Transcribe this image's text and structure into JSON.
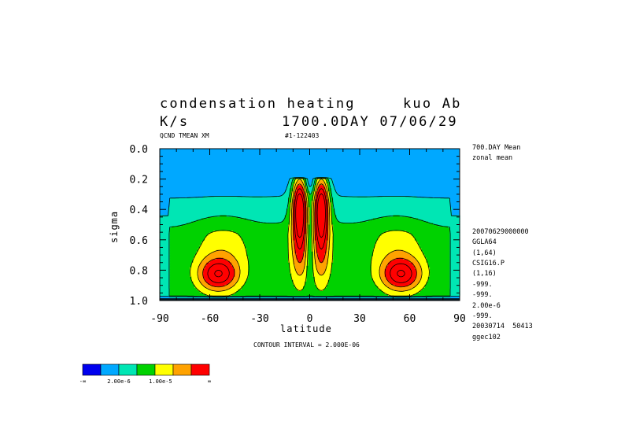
{
  "chart_data": {
    "type": "heatmap",
    "title_line1_left": "condensation heating",
    "title_line1_right": "kuo Ab",
    "title_line2_left": "K/s",
    "title_line2_right": "1700.0DAY 07/06/29",
    "var_label": "QCND TMEAN XM",
    "run_label": "#1-122403",
    "xlabel": "latitude",
    "ylabel": "sigma",
    "xlim": [
      -90,
      90
    ],
    "ylim": [
      1.0,
      0.0
    ],
    "xticks": [
      "-90",
      "-60",
      "-30",
      "0",
      "30",
      "60",
      "90"
    ],
    "yticks": [
      "0.0",
      "0.2",
      "0.4",
      "0.6",
      "0.8",
      "1.0"
    ],
    "contour_interval_text": "CONTOUR INTERVAL = 2.000E-06",
    "contour_interval": 2e-06,
    "levels": [
      0,
      2e-06,
      4e-06,
      6e-06,
      8e-06,
      1e-05,
      1.2e-05
    ],
    "colors": [
      "#0000ee",
      "#00a8ff",
      "#00e6b4",
      "#00d200",
      "#ffff00",
      "#ffa200",
      "#ff0000"
    ],
    "colorbar_labels": [
      "-∞",
      "2.00e-6",
      "1.00e-5",
      "∞"
    ],
    "annotations": [
      "700.DAY Mean",
      "zonal mean",
      "20070629000000",
      "GGLA64",
      "(1,64)",
      "CSIG16.P",
      "(1,16)",
      "-999.",
      "-999.",
      "2.00e-6",
      "-999.",
      "20030714  50413",
      "ggec102"
    ],
    "features": [
      {
        "name": "tropical-tower-south",
        "lat": -6,
        "sigma_top": 0.2,
        "sigma_bottom": 0.85,
        "peak_sigma": 0.38,
        "peak_level": 7
      },
      {
        "name": "tropical-tower-north",
        "lat": 7,
        "sigma_top": 0.2,
        "sigma_bottom": 0.85,
        "peak_sigma": 0.38,
        "peak_level": 7
      },
      {
        "name": "midlatitude-south",
        "lat": -55,
        "sigma": 0.83,
        "peak_level": 6
      },
      {
        "name": "midlatitude-north",
        "lat": 55,
        "sigma": 0.83,
        "peak_level": 6
      }
    ]
  }
}
